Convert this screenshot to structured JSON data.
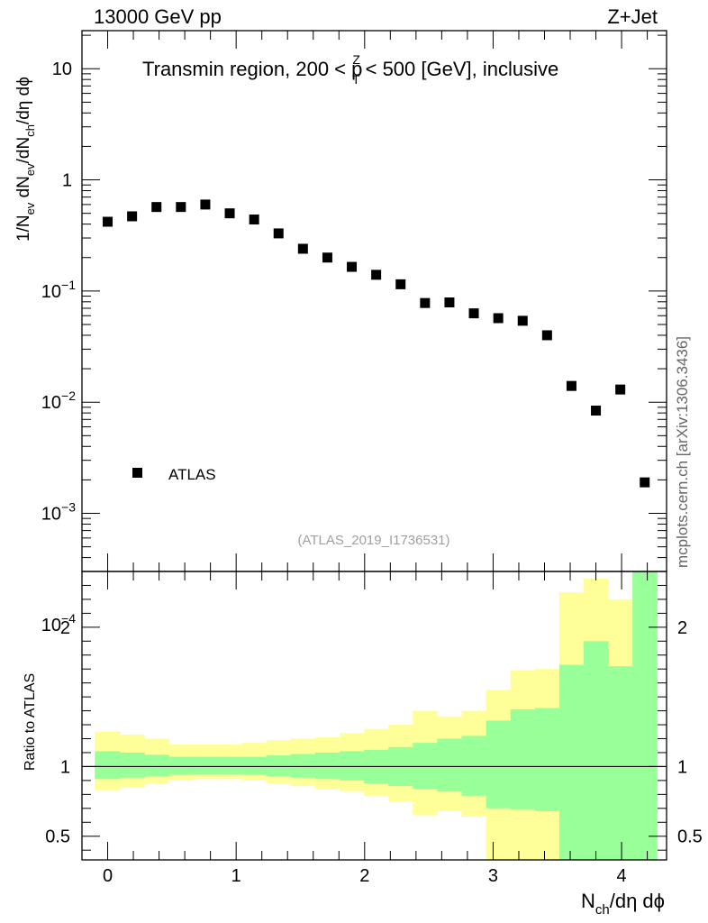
{
  "header": {
    "left": "13000 GeV pp",
    "right": "Z+Jet"
  },
  "colors": {
    "band_outer": "#ffff99",
    "band_inner": "#99ff99",
    "marker": "#000000"
  },
  "chart_data": [
    {
      "type": "scatter",
      "panel": "main",
      "title": "Transmin region, 200 < p",
      "title_sup": "Z",
      "title_sub": "T",
      "title_tail": " < 500 [GeV], inclusive",
      "ylabel": "1/N",
      "ylabel_parts": [
        "1/N",
        "ev",
        " dN",
        "ev",
        "/dN",
        "ch",
        "/dη dϕ"
      ],
      "yscale": "log",
      "ylim": [
        0.0003,
        22
      ],
      "xlim": [
        -0.2,
        4.35
      ],
      "yticks": [
        {
          "v": 10,
          "base": "10",
          "exp": ""
        },
        {
          "v": 1,
          "base": "1",
          "exp": ""
        },
        {
          "v": 0.1,
          "base": "10",
          "exp": "−1"
        },
        {
          "v": 0.01,
          "base": "10",
          "exp": "−2"
        },
        {
          "v": 0.001,
          "base": "10",
          "exp": "−3"
        },
        {
          "v": 0.0001,
          "base": "10",
          "exp": "−4"
        }
      ],
      "legend": {
        "entry": "ATLAS",
        "position": "bottom-left"
      },
      "analysis_label": "(ATLAS_2019_I1736531)",
      "side_label": "mcplots.cern.ch [arXiv:1306.3436]",
      "series": [
        {
          "name": "ATLAS",
          "x": [
            0.0,
            0.19,
            0.38,
            0.57,
            0.76,
            0.95,
            1.14,
            1.33,
            1.52,
            1.71,
            1.9,
            2.09,
            2.28,
            2.47,
            2.66,
            2.85,
            3.04,
            3.23,
            3.42,
            3.61,
            3.8,
            3.99,
            4.18
          ],
          "y": [
            0.42,
            0.47,
            0.57,
            0.57,
            0.6,
            0.5,
            0.44,
            0.33,
            0.24,
            0.2,
            0.165,
            0.14,
            0.115,
            0.078,
            0.079,
            0.063,
            0.057,
            0.054,
            0.04,
            0.014,
            0.0084,
            0.013,
            0.0019
          ]
        }
      ]
    },
    {
      "type": "area",
      "panel": "ratio",
      "ylabel": "Ratio to ATLAS",
      "xlabel": "N",
      "xlabel_parts": [
        "N",
        "ch",
        "/dη dϕ"
      ],
      "ylim": [
        0.33,
        2.4
      ],
      "xlim": [
        -0.2,
        4.35
      ],
      "yticks": [
        0.5,
        1,
        2
      ],
      "yticklabels": [
        "0.5",
        "1",
        "2"
      ],
      "xticks": [
        0,
        1,
        2,
        3,
        4
      ],
      "xticklabels": [
        "0",
        "1",
        "2",
        "3",
        "4"
      ],
      "bin_edges": [
        -0.1,
        0.095,
        0.285,
        0.475,
        0.665,
        0.855,
        1.045,
        1.235,
        1.425,
        1.615,
        1.805,
        1.995,
        2.185,
        2.375,
        2.565,
        2.755,
        2.945,
        3.135,
        3.325,
        3.515,
        3.705,
        3.895,
        4.085,
        4.275
      ],
      "inner_band": {
        "lo": [
          0.91,
          0.92,
          0.93,
          0.94,
          0.945,
          0.945,
          0.94,
          0.93,
          0.92,
          0.91,
          0.9,
          0.88,
          0.86,
          0.84,
          0.82,
          0.79,
          0.7,
          0.69,
          0.68,
          0.3,
          0.3,
          0.3,
          0.3
        ],
        "hi": [
          1.11,
          1.1,
          1.085,
          1.07,
          1.07,
          1.07,
          1.07,
          1.08,
          1.09,
          1.1,
          1.11,
          1.12,
          1.14,
          1.17,
          1.2,
          1.22,
          1.33,
          1.41,
          1.42,
          1.73,
          1.9,
          1.72,
          2.5
        ]
      },
      "outer_band": {
        "lo": [
          0.83,
          0.85,
          0.88,
          0.9,
          0.91,
          0.91,
          0.9,
          0.88,
          0.86,
          0.84,
          0.82,
          0.79,
          0.75,
          0.65,
          0.68,
          0.64,
          0.3,
          0.3,
          0.3,
          0.3,
          0.3,
          0.3,
          0.3
        ],
        "hi": [
          1.25,
          1.23,
          1.2,
          1.16,
          1.16,
          1.16,
          1.17,
          1.19,
          1.2,
          1.21,
          1.24,
          1.27,
          1.3,
          1.4,
          1.36,
          1.4,
          1.55,
          1.69,
          1.7,
          2.25,
          2.35,
          2.2,
          2.5
        ]
      },
      "reference_line": 1
    }
  ]
}
